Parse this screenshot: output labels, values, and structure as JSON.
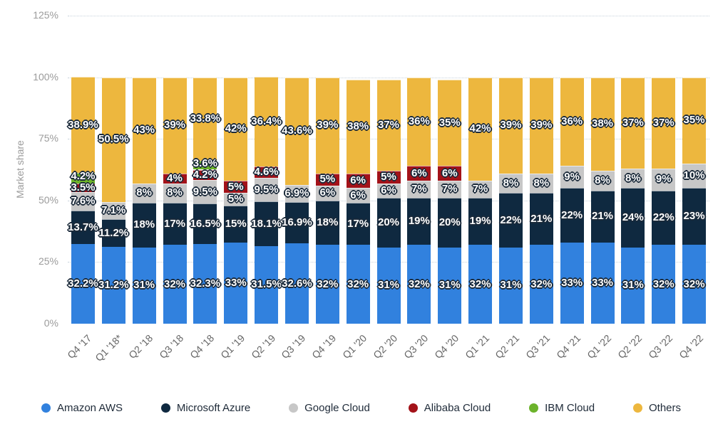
{
  "colors": {
    "background": "#ffffff",
    "grid": "#c7d2dc",
    "axis_text": "#9b9b9b",
    "x_tick_text": "#666666",
    "legend_text": "#1e2a38",
    "data_label_text": "#ffffff",
    "data_label_outline": "#1b2a3a"
  },
  "chart_data": {
    "type": "bar",
    "stacked": true,
    "unit": "%",
    "title": "",
    "xlabel": "",
    "ylabel": "Market share",
    "ylim": [
      0,
      125
    ],
    "y_ticks": [
      0,
      25,
      50,
      75,
      100,
      125
    ],
    "y_tick_suffix": "%",
    "grid": "horizontal-dotted",
    "legend_position": "bottom",
    "data_labels": true,
    "categories": [
      "Q4 '17",
      "Q1 '18*",
      "Q2 '18",
      "Q3 '18",
      "Q4 '18",
      "Q1 '19",
      "Q2 '19",
      "Q3 '19",
      "Q4 '19",
      "Q1 '20",
      "Q2 '20",
      "Q3 '20",
      "Q4 '20",
      "Q1 '21",
      "Q2 '21",
      "Q3 '21",
      "Q4 '21",
      "Q1 '22",
      "Q2 '22",
      "Q3 '22",
      "Q4 '22"
    ],
    "series": [
      {
        "name": "Amazon AWS",
        "color": "#3181de",
        "values": [
          32.2,
          31.2,
          31,
          32,
          32.3,
          33,
          31.5,
          32.6,
          32,
          32,
          31,
          32,
          31,
          32,
          31,
          32,
          33,
          33,
          31,
          32,
          32
        ]
      },
      {
        "name": "Microsoft Azure",
        "color": "#0f2940",
        "values": [
          13.7,
          11.2,
          18,
          17,
          16.5,
          15,
          18.1,
          16.9,
          18,
          17,
          20,
          19,
          20,
          19,
          22,
          21,
          22,
          21,
          24,
          22,
          23
        ]
      },
      {
        "name": "Google Cloud",
        "color": "#c7c7c7",
        "values": [
          7.6,
          7.1,
          8,
          8,
          9.5,
          5,
          9.5,
          6.9,
          6,
          6,
          6,
          7,
          7,
          7,
          8,
          8,
          9,
          8,
          8,
          9,
          10
        ]
      },
      {
        "name": "Alibaba Cloud",
        "color": "#a31219",
        "values": [
          3.5,
          null,
          null,
          4,
          4.2,
          5,
          4.6,
          null,
          5,
          6,
          5,
          6,
          6,
          null,
          null,
          null,
          null,
          null,
          null,
          null,
          null
        ]
      },
      {
        "name": "IBM Cloud",
        "color": "#6cb32b",
        "values": [
          4.2,
          null,
          null,
          null,
          3.6,
          null,
          null,
          null,
          null,
          null,
          null,
          null,
          null,
          null,
          null,
          null,
          null,
          null,
          null,
          null,
          null
        ]
      },
      {
        "name": "Others",
        "color": "#edb73e",
        "values": [
          38.9,
          50.5,
          43,
          39,
          33.8,
          42,
          36.4,
          43.6,
          39,
          38,
          37,
          36,
          35,
          42,
          39,
          39,
          36,
          38,
          37,
          37,
          35
        ]
      }
    ]
  }
}
